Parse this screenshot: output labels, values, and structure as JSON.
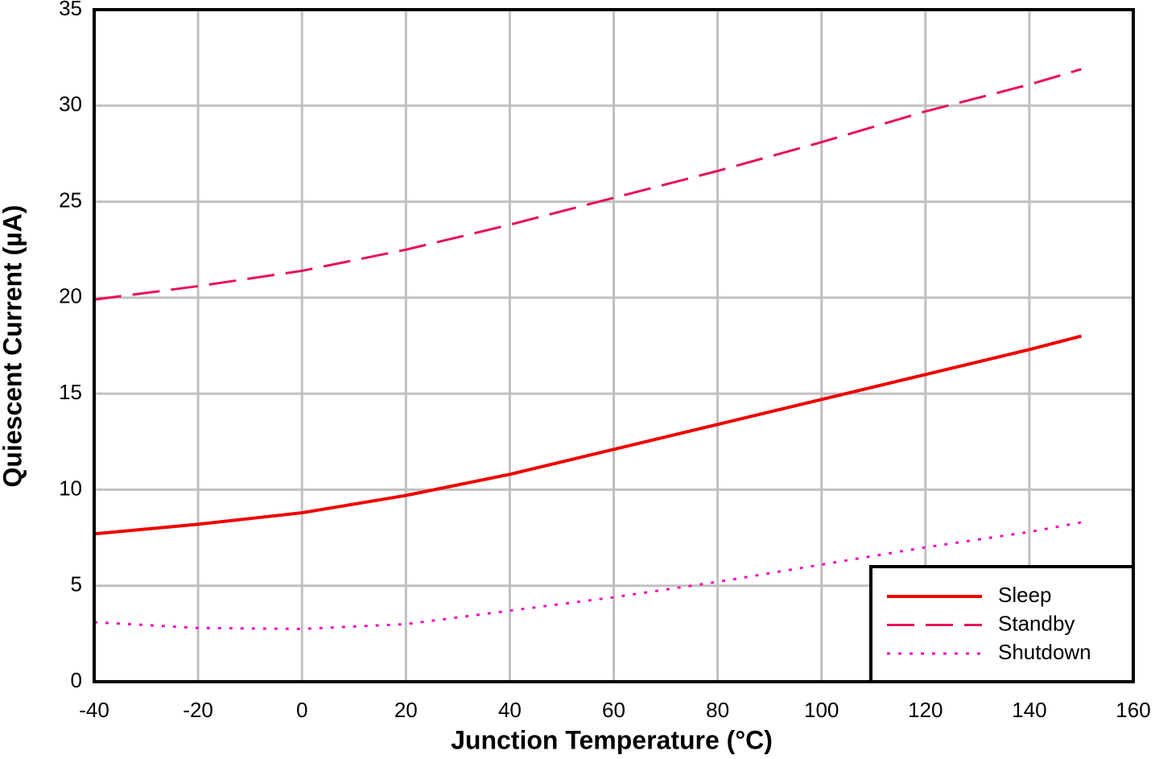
{
  "chart_data": {
    "type": "line",
    "x_label": "Junction Temperature (°C)",
    "y_label": "Quiescent Current (µA)",
    "x": [
      -40,
      -20,
      0,
      20,
      40,
      60,
      80,
      100,
      120,
      140,
      150
    ],
    "series": [
      {
        "name": "Sleep",
        "color": "#ee0000",
        "style": "solid",
        "values": [
          7.7,
          8.2,
          8.8,
          9.7,
          10.8,
          12.1,
          13.4,
          14.7,
          16.0,
          17.3,
          18.0
        ]
      },
      {
        "name": "Standby",
        "color": "#e8105a",
        "style": "dashed",
        "values": [
          19.9,
          20.6,
          21.4,
          22.5,
          23.8,
          25.2,
          26.6,
          28.1,
          29.7,
          31.1,
          31.9
        ]
      },
      {
        "name": "Shutdown",
        "color": "#ee10c0",
        "style": "dotted",
        "values": [
          3.1,
          2.8,
          2.75,
          3.0,
          3.7,
          4.4,
          5.2,
          6.1,
          7.0,
          7.8,
          8.3
        ]
      }
    ],
    "xlim": [
      -40,
      160
    ],
    "xticks": [
      -40,
      -20,
      0,
      20,
      40,
      60,
      80,
      100,
      120,
      140,
      160
    ],
    "ylim": [
      0,
      35
    ],
    "yticks": [
      0,
      5,
      10,
      15,
      20,
      25,
      30,
      35
    ],
    "grid": true,
    "legend": "lower right"
  }
}
